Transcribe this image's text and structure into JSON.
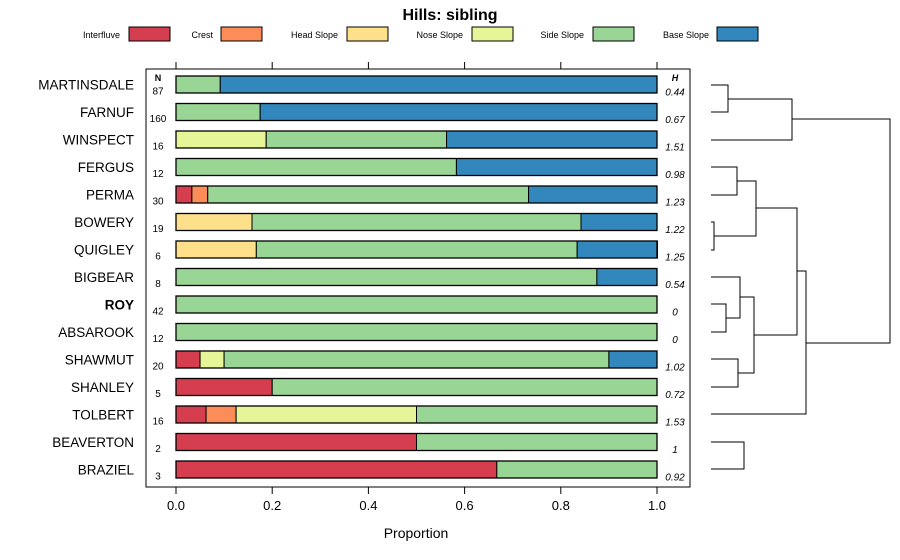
{
  "chart_data": {
    "type": "bar",
    "orientation": "horizontal",
    "stacked": true,
    "title": "Hills: sibling",
    "xlabel": "Proportion",
    "ylabel": "",
    "xlim": [
      0,
      1
    ],
    "x_ticks": [
      "0.0",
      "0.2",
      "0.4",
      "0.6",
      "0.8",
      "1.0"
    ],
    "n_header": "N",
    "h_header": "H",
    "highlighted": "ROY",
    "categories": [
      "MARTINSDALE",
      "FARNUF",
      "WINSPECT",
      "FERGUS",
      "PERMA",
      "BOWERY",
      "QUIGLEY",
      "BIGBEAR",
      "ROY",
      "ABSAROOK",
      "SHAWMUT",
      "SHANLEY",
      "TOLBERT",
      "BEAVERTON",
      "BRAZIEL"
    ],
    "n": [
      "87",
      "160",
      "16",
      "12",
      "30",
      "19",
      "6",
      "8",
      "42",
      "12",
      "20",
      "5",
      "16",
      "2",
      "3"
    ],
    "h": [
      "0.44",
      "0.67",
      "1.51",
      "0.98",
      "1.23",
      "1.22",
      "1.25",
      "0.54",
      "0",
      "0",
      "1.02",
      "0.72",
      "1.53",
      "1",
      "0.92"
    ],
    "series": [
      {
        "name": "Interfluve",
        "color": "#D53E4F",
        "values": [
          0,
          0,
          0,
          0,
          0.033,
          0,
          0,
          0,
          0,
          0,
          0.05,
          0.2,
          0.0625,
          0.5,
          0.667
        ]
      },
      {
        "name": "Crest",
        "color": "#FC8D59",
        "values": [
          0,
          0,
          0,
          0,
          0.033,
          0,
          0,
          0,
          0,
          0,
          0,
          0,
          0.0625,
          0,
          0
        ]
      },
      {
        "name": "Head Slope",
        "color": "#FEE08B",
        "values": [
          0,
          0,
          0,
          0,
          0,
          0.158,
          0.167,
          0,
          0,
          0,
          0,
          0,
          0,
          0,
          0
        ]
      },
      {
        "name": "Nose Slope",
        "color": "#E6F598",
        "values": [
          0,
          0,
          0.1875,
          0,
          0,
          0,
          0,
          0,
          0,
          0,
          0.05,
          0,
          0.375,
          0,
          0
        ]
      },
      {
        "name": "Side Slope",
        "color": "#99D594",
        "values": [
          0.092,
          0.175,
          0.375,
          0.583,
          0.667,
          0.684,
          0.667,
          0.875,
          1,
          1,
          0.8,
          0.8,
          0.5,
          0.5,
          0.333
        ]
      },
      {
        "name": "Base Slope",
        "color": "#3288BD",
        "values": [
          0.908,
          0.825,
          0.4375,
          0.417,
          0.267,
          0.158,
          0.167,
          0.125,
          0,
          0,
          0.1,
          0,
          0,
          0,
          0
        ]
      }
    ]
  }
}
